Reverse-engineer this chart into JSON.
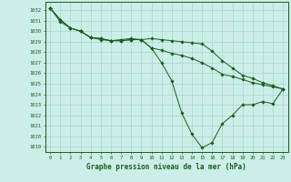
{
  "title": "Graphe pression niveau de la mer (hPa)",
  "bg_color": "#cceee8",
  "grid_color": "#aad4ce",
  "line_color": "#1a5c1a",
  "marker_color": "#1a5c1a",
  "xlim": [
    -0.5,
    23.5
  ],
  "ylim": [
    1018.5,
    1032.8
  ],
  "yticks": [
    1019,
    1020,
    1021,
    1022,
    1023,
    1024,
    1025,
    1026,
    1027,
    1028,
    1029,
    1030,
    1031,
    1032
  ],
  "xticks": [
    0,
    1,
    2,
    3,
    4,
    5,
    6,
    7,
    8,
    9,
    10,
    11,
    12,
    13,
    14,
    15,
    16,
    17,
    18,
    19,
    20,
    21,
    22,
    23
  ],
  "series": [
    [
      1032.2,
      1031.1,
      1030.3,
      1030.0,
      1029.4,
      1029.3,
      1029.1,
      1029.2,
      1029.3,
      1029.2,
      1028.4,
      1027.0,
      1025.3,
      1022.2,
      1020.2,
      1018.9,
      1019.4,
      1021.2,
      1022.0,
      1023.0,
      1023.0,
      1023.3,
      1023.1,
      1024.5
    ],
    [
      1032.2,
      1030.9,
      1030.3,
      1030.0,
      1029.4,
      1029.2,
      1029.1,
      1029.1,
      1029.2,
      1029.2,
      1029.3,
      1029.2,
      1029.1,
      1029.0,
      1028.9,
      1028.8,
      1028.1,
      1027.2,
      1026.5,
      1025.8,
      1025.5,
      1025.1,
      1024.8,
      1024.5
    ],
    [
      1032.2,
      1031.1,
      1030.3,
      1030.0,
      1029.4,
      1029.3,
      1029.1,
      1029.1,
      1029.2,
      1029.2,
      1028.4,
      1028.2,
      1027.9,
      1027.7,
      1027.4,
      1027.0,
      1026.5,
      1025.9,
      1025.7,
      1025.4,
      1025.1,
      1024.9,
      1024.7,
      1024.5
    ]
  ]
}
